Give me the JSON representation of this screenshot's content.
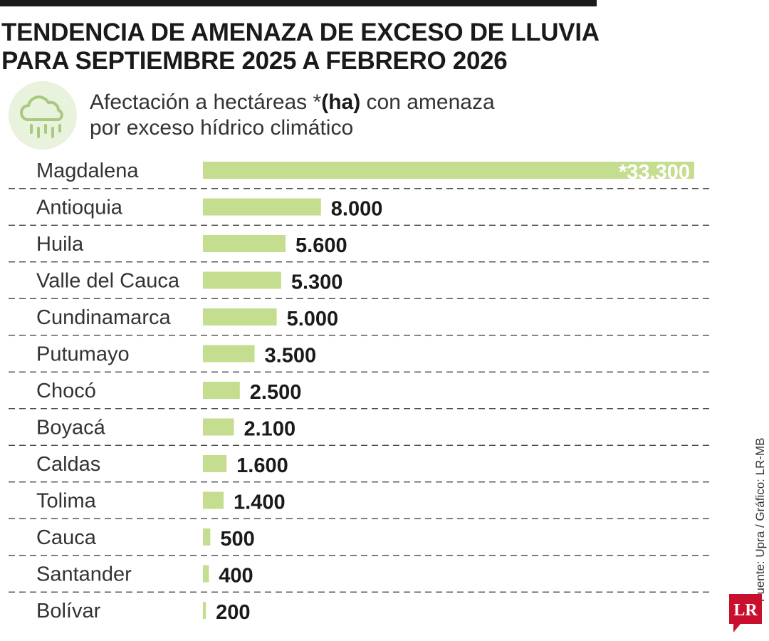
{
  "title": {
    "line1": "TENDENCIA DE AMENAZA DE EXCESO DE LLUVIA",
    "line2": "PARA SEPTIEMBRE 2025 A FEBRERO 2026"
  },
  "subtitle": {
    "prefix": "Afectación a hectáreas *",
    "bold": "(ha)",
    "suffix": " con amenaza",
    "line2": "por exceso hídrico climático"
  },
  "icon": "rain-cloud-icon",
  "source": "Fuente: Upra / Gráfico: LR-MB",
  "logo": "LR",
  "colors": {
    "bar": "#c5dd8f",
    "icon_bg": "#e8f2dc",
    "icon_stroke": "#a8c97f",
    "logo": "#c8102e"
  },
  "chart_data": {
    "type": "bar",
    "orientation": "horizontal",
    "categories": [
      "Magdalena",
      "Antioquia",
      "Huila",
      "Valle del Cauca",
      "Cundinamarca",
      "Putumayo",
      "Chocó",
      "Boyacá",
      "Caldas",
      "Tolima",
      "Cauca",
      "Santander",
      "Bolívar"
    ],
    "values": [
      33300,
      8000,
      5600,
      5300,
      5000,
      3500,
      2500,
      2100,
      1600,
      1400,
      500,
      400,
      200
    ],
    "value_labels": [
      "*33.300",
      "8.000",
      "5.600",
      "5.300",
      "5.000",
      "3.500",
      "2.500",
      "2.100",
      "1.600",
      "1.400",
      "500",
      "400",
      "200"
    ],
    "xlim": [
      0,
      33300
    ],
    "grid": false
  }
}
